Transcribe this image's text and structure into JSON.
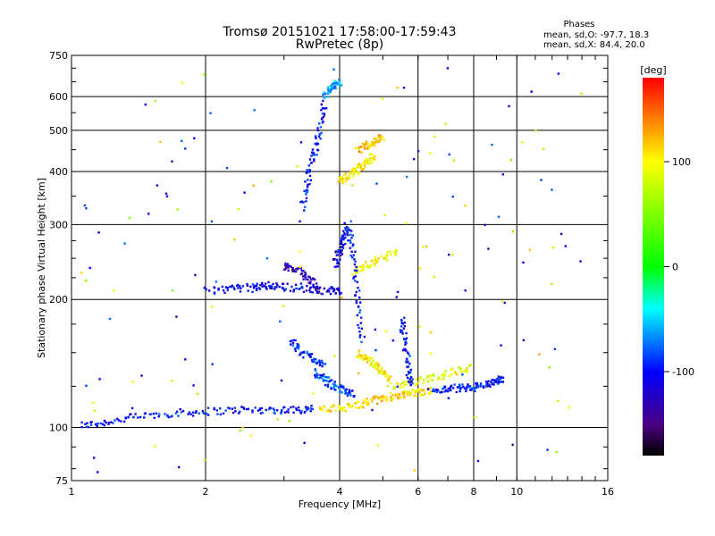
{
  "chart_data": {
    "type": "scatter",
    "title": "Tromsø 20151021 17:58:00-17:59:43",
    "subtitle": "RwPretec (8p)",
    "xlabel": "Frequency [MHz]",
    "ylabel": "Stationary phase Virtual Height [km]",
    "x_scale": "log",
    "y_scale": "log",
    "xlim": [
      1,
      16
    ],
    "ylim": [
      75,
      750
    ],
    "xticks": [
      1,
      2,
      4,
      6,
      8,
      10,
      16
    ],
    "xtick_labels": [
      "1",
      "2",
      "4",
      "6",
      "8",
      "10",
      "16"
    ],
    "yticks": [
      75,
      100,
      200,
      300,
      400,
      500,
      600,
      750
    ],
    "ytick_labels": [
      "75",
      "100",
      "200",
      "300",
      "400",
      "500",
      "600",
      "750"
    ],
    "grid": true,
    "stats": {
      "header": "Phases",
      "o_line": "mean, sd,O: -97.7, 18.3",
      "x_line": "mean, sd,X:  84.4, 20.0"
    },
    "colorbar": {
      "label": "[deg]",
      "range": [
        -180,
        180
      ],
      "ticks": [
        100,
        0,
        -100
      ],
      "tick_labels": [
        "100",
        "0",
        "-100"
      ],
      "colors": [
        "#000000",
        "#4b0082",
        "#0000ff",
        "#00ffff",
        "#00ff00",
        "#ffff00",
        "#ff8000",
        "#ff0000"
      ]
    },
    "traces": [
      {
        "x": [
          1.05,
          1.2,
          1.4,
          1.7,
          2.0,
          2.4,
          2.8,
          3.2,
          3.5
        ],
        "y": [
          101,
          103,
          106,
          108,
          109,
          110,
          110,
          110,
          111
        ],
        "phase": -100
      },
      {
        "x": [
          3.6,
          4.0,
          4.4,
          4.8,
          5.2,
          5.6,
          6.0,
          6.5
        ],
        "y": [
          110,
          111,
          113,
          116,
          118,
          120,
          121,
          122
        ],
        "phase": 110
      },
      {
        "x": [
          6.5,
          7.0,
          7.5,
          8.0,
          8.5,
          9.0,
          9.3
        ],
        "y": [
          122,
          123,
          124,
          124,
          126,
          128,
          129
        ],
        "phase": -95
      },
      {
        "x": [
          5.2,
          5.8,
          6.5,
          7.2,
          8.0
        ],
        "y": [
          125,
          128,
          131,
          135,
          138
        ],
        "phase": 90
      },
      {
        "x": [
          2.0,
          2.3,
          2.6,
          2.8,
          3.0,
          3.4,
          3.8,
          4.0
        ],
        "y": [
          210,
          212,
          214,
          216,
          214,
          211,
          210,
          210
        ],
        "phase": -105
      },
      {
        "x": [
          3.0,
          3.2,
          3.4,
          3.6
        ],
        "y": [
          240,
          235,
          225,
          210
        ],
        "phase": -130
      },
      {
        "x": [
          3.1,
          3.3,
          3.5,
          3.7
        ],
        "y": [
          160,
          150,
          145,
          140
        ],
        "phase": -90
      },
      {
        "x": [
          3.5,
          3.7,
          3.9,
          4.1,
          4.3
        ],
        "y": [
          135,
          130,
          125,
          122,
          120
        ],
        "phase": -85
      },
      {
        "x": [
          3.3,
          3.4,
          3.5,
          3.6,
          3.7
        ],
        "y": [
          330,
          380,
          440,
          500,
          580
        ],
        "phase": -100
      },
      {
        "x": [
          3.7,
          3.8,
          3.9,
          4.0
        ],
        "y": [
          600,
          620,
          640,
          650
        ],
        "phase": -60
      },
      {
        "x": [
          4.0,
          4.2,
          4.4,
          4.6,
          4.8
        ],
        "y": [
          380,
          390,
          405,
          420,
          440
        ],
        "phase": 105
      },
      {
        "x": [
          4.4,
          4.6,
          4.8,
          5.0
        ],
        "y": [
          450,
          460,
          470,
          480
        ],
        "phase": 120
      },
      {
        "x": [
          3.9,
          4.0,
          4.1,
          4.2
        ],
        "y": [
          240,
          260,
          280,
          300
        ],
        "phase": -110
      },
      {
        "x": [
          4.3,
          4.6,
          5.0,
          5.4
        ],
        "y": [
          230,
          240,
          250,
          260
        ],
        "phase": 95
      },
      {
        "x": [
          4.4,
          4.6,
          4.8,
          5.0,
          5.2
        ],
        "y": [
          150,
          145,
          140,
          135,
          130
        ],
        "phase": 100
      },
      {
        "x": [
          5.5,
          5.6,
          5.7,
          5.8
        ],
        "y": [
          180,
          160,
          140,
          125
        ],
        "phase": -100
      },
      {
        "x": [
          4.2,
          4.3,
          4.4,
          4.5
        ],
        "y": [
          300,
          250,
          200,
          160
        ],
        "phase": -95
      }
    ]
  }
}
